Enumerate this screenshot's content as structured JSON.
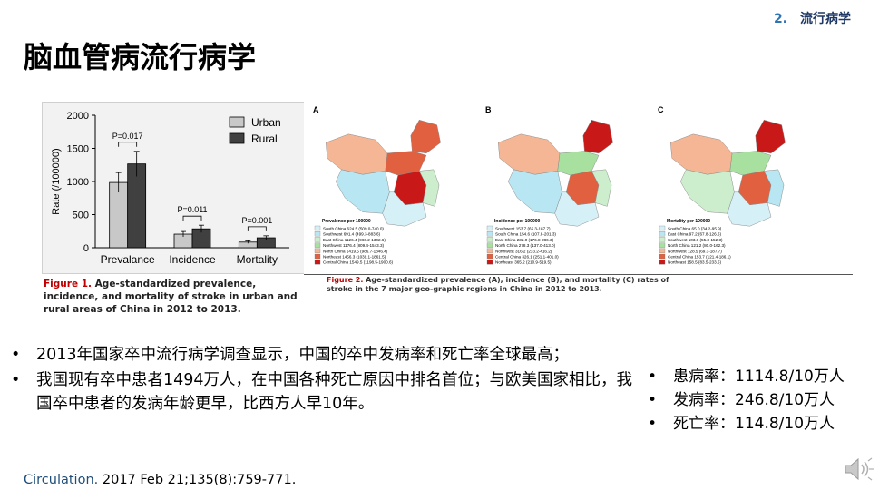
{
  "header": {
    "section_number": "2.",
    "section_label": "流行病学"
  },
  "title": "脑血管病流行病学",
  "figure1": {
    "chart_data": {
      "type": "bar",
      "categories": [
        "Prevalance",
        "Incidence",
        "Mortality"
      ],
      "series": [
        {
          "name": "Urban",
          "values": [
            985,
            205,
            85
          ],
          "errors": [
            150,
            40,
            20
          ],
          "color": "#c8c8c8"
        },
        {
          "name": "Rural",
          "values": [
            1265,
            285,
            150
          ],
          "errors": [
            190,
            55,
            30
          ],
          "color": "#404040"
        }
      ],
      "p_values": [
        "P=0.017",
        "P=0.011",
        "P=0.001"
      ],
      "ylabel": "Rate (/100000)",
      "yticks": [
        0,
        500,
        1000,
        1500,
        2000
      ],
      "ylim": [
        0,
        2000
      ],
      "legend_position": "top-right"
    },
    "caption_label": "Figure 1.",
    "caption_text": " Age-standardized prevalence, incidence, and mortality of stroke in urban and rural areas of China in 2012 to 2013."
  },
  "figure2": {
    "maps": [
      {
        "panel": "A",
        "legend_title": "Prevalence per 100000",
        "legend": [
          "South China  624.5 (509.0-740.0)",
          "Southwest  691.4 (499.3-883.6)",
          "East China  1126.4 (960.2-1302.6)",
          "Northwest  1176.4 (809.4-1543.3)",
          "North China  1419.5 (986.7-1846.4)",
          "Northeast  1456.3 (1039.1-1861.5)",
          "Central China  1549.5 (1198.5-1900.6)"
        ]
      },
      {
        "panel": "B",
        "legend_title": "Incidence per 100000",
        "legend": [
          "Southwest  153.7 (65.3-187.7)",
          "South China  154.6 (107.8-201.3)",
          "East China  232.0 (176.8-286.3)",
          "North China  278.3 (137.0-413.0)",
          "Northwest  316.2 (213.2-416.2)",
          "Central China  326.1 (251.1-401.0)",
          "Northeast  365.2 (210.9-519.5)"
        ]
      },
      {
        "panel": "C",
        "legend_title": "Mortality per 100000",
        "legend": [
          "South China  65.0 (34.2-95.9)",
          "East China  97.2 (67.8-126.6)",
          "Southwest  103.8 (55.3-152.3)",
          "North China  121.2 (80.0-162.3)",
          "Northwest  128.5 (69.3-187.7)",
          "Central China  153.7 (121.4-186.1)",
          "Northeast  158.5 (83.5-233.5)"
        ]
      }
    ],
    "legend_colors": [
      "#d6f0f8",
      "#b8e6f2",
      "#cceecc",
      "#a8e0a0",
      "#f4b694",
      "#e06040",
      "#c81818"
    ],
    "caption_label": "Figure 2.",
    "caption_text": " Age-standardized prevalence (A), incidence (B), and mortality (C) rates of stroke in the 7 major geo-graphic regions in China in 2012 to 2013."
  },
  "bullets": [
    "2013年国家卒中流行病学调查显示，中国的卒中发病率和死亡率全球最高；",
    "我国现有卒中患者1494万人，在中国各种死亡原因中排名首位；与欧美国家相比，我国卒中患者的发病年龄更早，比西方人早10年。"
  ],
  "stats": [
    "患病率：1114.8/10万人",
    "发病率：246.8/10万人",
    "死亡率：114.8/10万人"
  ],
  "citation": {
    "journal": "Circulation.",
    "rest": " 2017 Feb 21;135(8):759-771."
  },
  "icons": {
    "audio": "speaker-icon"
  }
}
